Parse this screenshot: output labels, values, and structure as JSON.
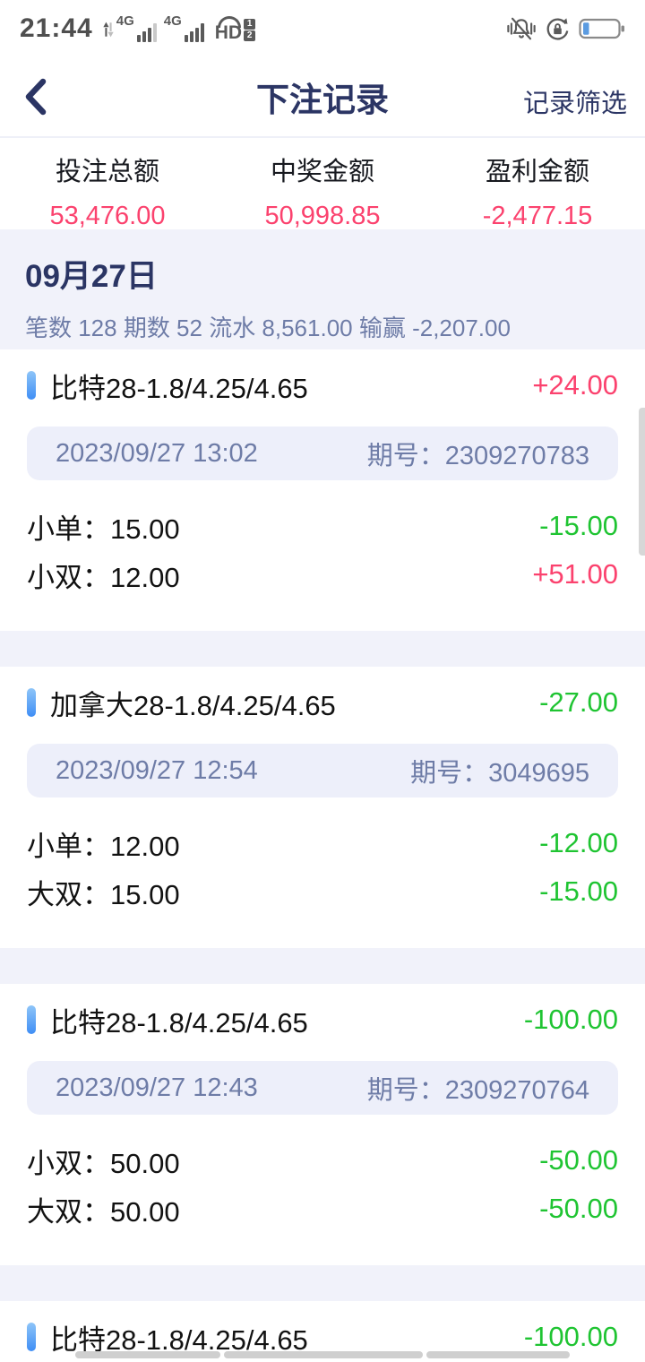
{
  "colors": {
    "accent_navy": "#2b3564",
    "muted_blue": "#6e7ca7",
    "positive_pink": "#fb426e",
    "negative_green": "#1fc432",
    "section_bg": "#f1f2fa",
    "meta_bar_bg": "#edeffa",
    "marker_blue_top": "#8ec5f8",
    "marker_blue_bottom": "#3f8ef5"
  },
  "status_bar": {
    "time": "21:44",
    "sim1_network": "4G",
    "sim2_network": "4G",
    "volte_label": "HD",
    "volte_sim1": "1",
    "volte_sim2": "2"
  },
  "header": {
    "title": "下注记录",
    "filter_label": "记录筛选"
  },
  "summary": {
    "columns": [
      {
        "label": "投注总额",
        "value": "53,476.00"
      },
      {
        "label": "中奖金额",
        "value": "50,998.85"
      },
      {
        "label": "盈利金额",
        "value": "-2,477.15"
      }
    ]
  },
  "day_group": {
    "date": "09月27日",
    "stats": "笔数 128 期数 52 流水 8,561.00 输赢 -2,207.00"
  },
  "records": [
    {
      "title": "比特28-1.8/4.25/4.65",
      "result": "+24.00",
      "result_color": "pink",
      "time": "2023/09/27 13:02",
      "issue": "期号：2309270783",
      "bets": [
        {
          "label": "小单：15.00",
          "payout": "-15.00",
          "payout_color": "green"
        },
        {
          "label": "小双：12.00",
          "payout": "+51.00",
          "payout_color": "pink"
        }
      ]
    },
    {
      "title": "加拿大28-1.8/4.25/4.65",
      "result": "-27.00",
      "result_color": "green",
      "time": "2023/09/27 12:54",
      "issue": "期号：3049695",
      "bets": [
        {
          "label": "小单：12.00",
          "payout": "-12.00",
          "payout_color": "green"
        },
        {
          "label": "大双：15.00",
          "payout": "-15.00",
          "payout_color": "green"
        }
      ]
    },
    {
      "title": "比特28-1.8/4.25/4.65",
      "result": "-100.00",
      "result_color": "green",
      "time": "2023/09/27 12:43",
      "issue": "期号：2309270764",
      "bets": [
        {
          "label": "小双：50.00",
          "payout": "-50.00",
          "payout_color": "green"
        },
        {
          "label": "大双：50.00",
          "payout": "-50.00",
          "payout_color": "green"
        }
      ]
    },
    {
      "title": "比特28-1.8/4.25/4.65",
      "result": "-100.00",
      "result_color": "green",
      "bets": []
    }
  ]
}
